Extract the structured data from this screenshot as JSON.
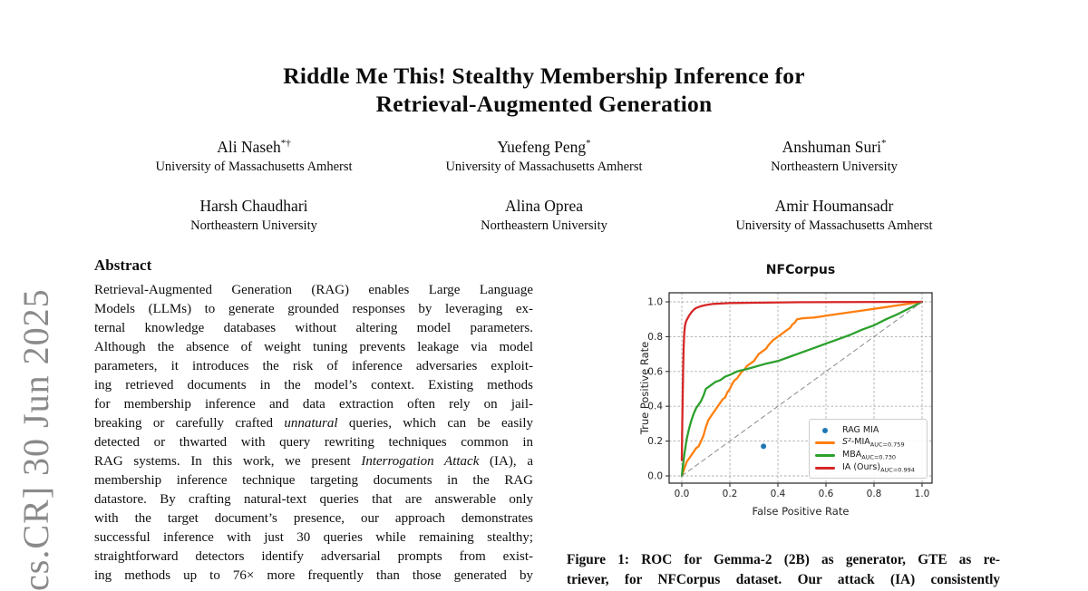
{
  "arxiv_stamp": "cs.CR] 30 Jun 2025",
  "title": {
    "line1": "Riddle Me This! Stealthy Membership Inference for",
    "line2": "Retrieval-Augmented Generation"
  },
  "authors": [
    {
      "name": "Ali Naseh",
      "sup": "*†",
      "affiliation": "University of Massachusetts Amherst"
    },
    {
      "name": "Yuefeng Peng",
      "sup": "*",
      "affiliation": "University of Massachusetts Amherst"
    },
    {
      "name": "Anshuman Suri",
      "sup": "*",
      "affiliation": "Northeastern University"
    },
    {
      "name": "Harsh Chaudhari",
      "sup": "",
      "affiliation": "Northeastern University"
    },
    {
      "name": "Alina Oprea",
      "sup": "",
      "affiliation": "Northeastern University"
    },
    {
      "name": "Amir Houmansadr",
      "sup": "",
      "affiliation": "University of Massachusetts Amherst"
    }
  ],
  "abstract": {
    "heading": "Abstract",
    "lines": [
      "Retrieval-Augmented Generation (RAG) enables Large Language",
      "Models (LLMs) to generate grounded responses by leveraging ex-",
      "ternal knowledge databases without altering model parameters.",
      "Although the absence of weight tuning prevents leakage via model",
      "parameters, it introduces the risk of inference adversaries exploit-",
      "ing retrieved documents in the model’s context. Existing methods",
      "for membership inference and data extraction often rely on jail-",
      "breaking or carefully crafted *unnatural* queries, which can be easily",
      "detected or thwarted with query rewriting techniques common in",
      "RAG systems. In this work, we present *Interrogation Attack* (IA), a",
      "membership inference technique targeting documents in the RAG",
      "datastore. By crafting natural-text queries that are answerable only",
      "with the target document’s presence, our approach demonstrates",
      "successful inference with just 30 queries while remaining stealthy;",
      "straightforward detectors identify adversarial prompts from exist-",
      "ing methods up to 76× more frequently than those generated by"
    ]
  },
  "figure": {
    "caption_lines": [
      "Figure 1: ROC for Gemma-2 (2B) as generator, GTE as re-",
      "triever, for NFCorpus dataset. Our attack (IA) consistently"
    ]
  },
  "chart_data": {
    "type": "line",
    "title": "NFCorpus",
    "xlabel": "False Positive Rate",
    "ylabel": "True Positive Rate",
    "xlim": [
      -0.05,
      1.05
    ],
    "ylim": [
      -0.04,
      1.05
    ],
    "xticks": [
      0.0,
      0.2,
      0.4,
      0.6,
      0.8,
      1.0
    ],
    "yticks": [
      0.0,
      0.2,
      0.4,
      0.6,
      0.8,
      1.0
    ],
    "grid": true,
    "legend_position": "lower right",
    "series": [
      {
        "name": "RAG MIA",
        "type": "scatter",
        "color": "#1f77b4",
        "legend": true,
        "points": [
          [
            0.34,
            0.17
          ]
        ]
      },
      {
        "name": "*S²*-MIA",
        "auc": "AUC=0.759",
        "type": "line",
        "color": "#ff7f0e",
        "legend": true,
        "points": [
          [
            0,
            0
          ],
          [
            0.01,
            0.04
          ],
          [
            0.02,
            0.08
          ],
          [
            0.04,
            0.12
          ],
          [
            0.05,
            0.14
          ],
          [
            0.06,
            0.16
          ],
          [
            0.07,
            0.17
          ],
          [
            0.08,
            0.2
          ],
          [
            0.09,
            0.23
          ],
          [
            0.1,
            0.28
          ],
          [
            0.11,
            0.32
          ],
          [
            0.12,
            0.34
          ],
          [
            0.13,
            0.36
          ],
          [
            0.14,
            0.38
          ],
          [
            0.15,
            0.4
          ],
          [
            0.16,
            0.42
          ],
          [
            0.17,
            0.44
          ],
          [
            0.18,
            0.45
          ],
          [
            0.19,
            0.48
          ],
          [
            0.2,
            0.5
          ],
          [
            0.21,
            0.53
          ],
          [
            0.22,
            0.55
          ],
          [
            0.23,
            0.56
          ],
          [
            0.24,
            0.58
          ],
          [
            0.25,
            0.6
          ],
          [
            0.26,
            0.61
          ],
          [
            0.27,
            0.63
          ],
          [
            0.28,
            0.64
          ],
          [
            0.3,
            0.66
          ],
          [
            0.31,
            0.68
          ],
          [
            0.32,
            0.7
          ],
          [
            0.33,
            0.71
          ],
          [
            0.35,
            0.73
          ],
          [
            0.36,
            0.75
          ],
          [
            0.38,
            0.78
          ],
          [
            0.39,
            0.79
          ],
          [
            0.4,
            0.8
          ],
          [
            0.42,
            0.82
          ],
          [
            0.43,
            0.83
          ],
          [
            0.45,
            0.85
          ],
          [
            0.46,
            0.87
          ],
          [
            0.47,
            0.88
          ],
          [
            0.48,
            0.9
          ],
          [
            0.5,
            0.905
          ],
          [
            0.55,
            0.91
          ],
          [
            0.6,
            0.92
          ],
          [
            0.65,
            0.93
          ],
          [
            0.7,
            0.94
          ],
          [
            0.75,
            0.95
          ],
          [
            0.8,
            0.96
          ],
          [
            0.85,
            0.97
          ],
          [
            0.9,
            0.98
          ],
          [
            0.95,
            0.99
          ],
          [
            1.0,
            1.0
          ]
        ]
      },
      {
        "name": "MBA",
        "auc": "AUC=0.730",
        "type": "line",
        "color": "#2ca02c",
        "legend": true,
        "points": [
          [
            0,
            0
          ],
          [
            0.005,
            0.06
          ],
          [
            0.01,
            0.12
          ],
          [
            0.02,
            0.21
          ],
          [
            0.03,
            0.27
          ],
          [
            0.04,
            0.32
          ],
          [
            0.05,
            0.36
          ],
          [
            0.06,
            0.39
          ],
          [
            0.07,
            0.41
          ],
          [
            0.08,
            0.43
          ],
          [
            0.09,
            0.46
          ],
          [
            0.1,
            0.5
          ],
          [
            0.12,
            0.52
          ],
          [
            0.14,
            0.54
          ],
          [
            0.16,
            0.55
          ],
          [
            0.18,
            0.57
          ],
          [
            0.2,
            0.58
          ],
          [
            0.23,
            0.6
          ],
          [
            0.26,
            0.61
          ],
          [
            0.3,
            0.625
          ],
          [
            0.35,
            0.645
          ],
          [
            0.4,
            0.66
          ],
          [
            0.45,
            0.685
          ],
          [
            0.5,
            0.71
          ],
          [
            0.55,
            0.735
          ],
          [
            0.6,
            0.76
          ],
          [
            0.65,
            0.785
          ],
          [
            0.7,
            0.81
          ],
          [
            0.75,
            0.84
          ],
          [
            0.8,
            0.865
          ],
          [
            0.85,
            0.9
          ],
          [
            0.9,
            0.93
          ],
          [
            0.95,
            0.965
          ],
          [
            1.0,
            1.0
          ]
        ]
      },
      {
        "name": "IA (Ours)",
        "auc": "AUC=0.994",
        "type": "line",
        "color": "#d62728",
        "legend": true,
        "points": [
          [
            0,
            0.09
          ],
          [
            0.002,
            0.3
          ],
          [
            0.004,
            0.5
          ],
          [
            0.006,
            0.65
          ],
          [
            0.008,
            0.75
          ],
          [
            0.01,
            0.82
          ],
          [
            0.013,
            0.86
          ],
          [
            0.016,
            0.88
          ],
          [
            0.02,
            0.895
          ],
          [
            0.03,
            0.92
          ],
          [
            0.04,
            0.94
          ],
          [
            0.05,
            0.955
          ],
          [
            0.06,
            0.965
          ],
          [
            0.08,
            0.975
          ],
          [
            0.1,
            0.982
          ],
          [
            0.13,
            0.988
          ],
          [
            0.16,
            0.99
          ],
          [
            0.2,
            0.993
          ],
          [
            0.3,
            0.995
          ],
          [
            0.5,
            0.998
          ],
          [
            1.0,
            1.0
          ]
        ]
      },
      {
        "name": "chance",
        "type": "dashed",
        "color": "#8c8c8c",
        "legend": false,
        "points": [
          [
            0,
            0
          ],
          [
            1,
            1
          ]
        ]
      }
    ]
  }
}
